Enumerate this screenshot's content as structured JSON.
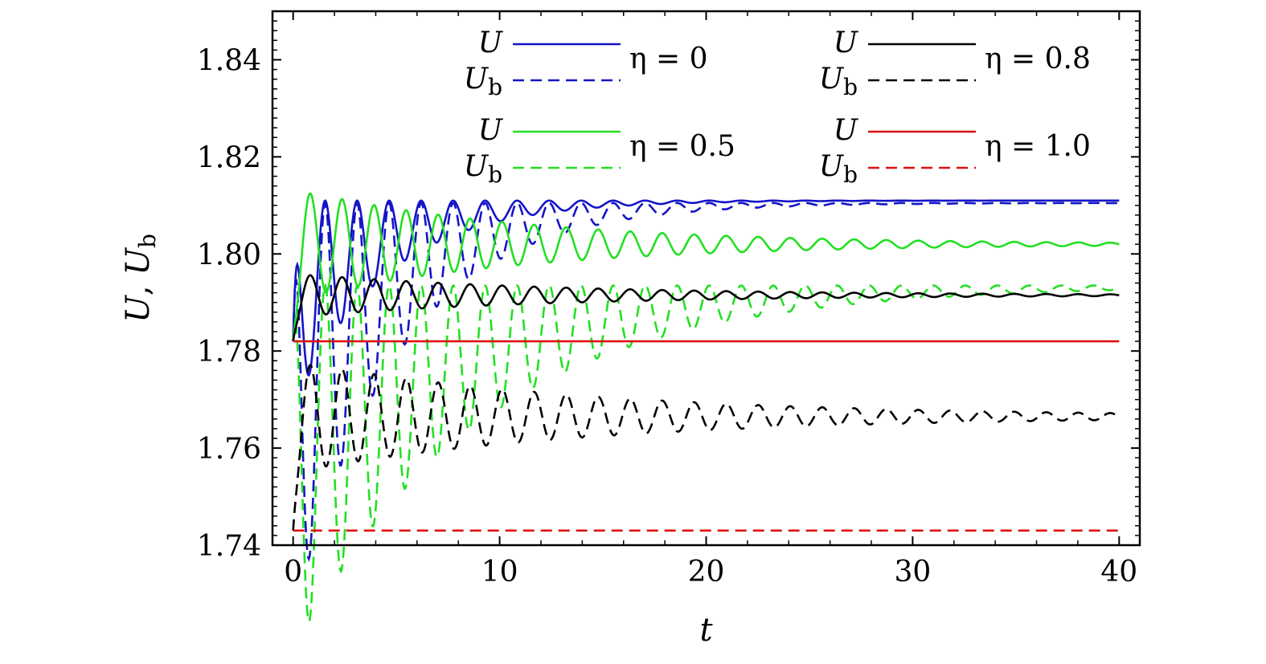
{
  "chart_data": {
    "type": "line",
    "title": "",
    "xlabel": "t",
    "ylabel_main": "U",
    "ylabel_sep": ", ",
    "ylabel_sub_main": "U",
    "ylabel_sub": "b",
    "xlim": [
      -1,
      41
    ],
    "ylim": [
      1.74,
      1.85
    ],
    "xticks": [
      0,
      10,
      20,
      30,
      40
    ],
    "xtick_labels": [
      "0",
      "10",
      "20",
      "30",
      "40"
    ],
    "yticks": [
      1.74,
      1.76,
      1.78,
      1.8,
      1.82,
      1.84
    ],
    "ytick_labels": [
      "1.74",
      "1.76",
      "1.78",
      "1.80",
      "1.82",
      "1.84"
    ],
    "grid": false,
    "legend_position": "top",
    "series": [
      {
        "name": "U, η = 0",
        "color": "#1414c8",
        "dash": "solid",
        "start": 1.782,
        "final": 1.811,
        "ceiling": 1.811,
        "amp0": 0.0215,
        "decay": 0.23,
        "period": 1.55
      },
      {
        "name": "Ub, η = 0",
        "color": "#1414c8",
        "dash": "dashed",
        "start": 1.782,
        "final": 1.8105,
        "ceiling": 1.8105,
        "amp0": 0.043,
        "decay": 0.2,
        "period": 1.55
      },
      {
        "name": "U, η = 0.5",
        "color": "#22e022",
        "dash": "solid",
        "start": 1.782,
        "final": 1.802,
        "ceiling": null,
        "amp0": 0.0115,
        "decay": 0.09,
        "period": 1.55
      },
      {
        "name": "Ub, η = 0.5",
        "color": "#22e022",
        "dash": "dashed",
        "start": 1.782,
        "final": 1.7935,
        "ceiling": 1.7935,
        "amp0": 0.038,
        "decay": 0.11,
        "period": 1.55
      },
      {
        "name": "U, η = 0.8",
        "color": "#000000",
        "dash": "solid",
        "start": 1.782,
        "final": 1.7915,
        "ceiling": null,
        "amp0": 0.0045,
        "decay": 0.08,
        "period": 1.55
      },
      {
        "name": "Ub, η = 0.8",
        "color": "#000000",
        "dash": "dashed",
        "start": 1.743,
        "final": 1.7665,
        "ceiling": null,
        "amp0": 0.0115,
        "decay": 0.07,
        "period": 1.55
      },
      {
        "name": "U, η = 1.0",
        "color": "#dd1111",
        "dash": "solid",
        "start": 1.782,
        "final": 1.782,
        "ceiling": null,
        "amp0": 0,
        "decay": 0,
        "period": 1.55
      },
      {
        "name": "Ub, η = 1.0",
        "color": "#dd1111",
        "dash": "dashed",
        "start": 1.743,
        "final": 1.743,
        "ceiling": null,
        "amp0": 0,
        "decay": 0,
        "period": 1.55
      }
    ],
    "legend": [
      {
        "color": "#1414c8",
        "symbol_main": "U",
        "symbol_sub_main": "U",
        "symbol_sub": "b",
        "eta_text": "η = 0"
      },
      {
        "color": "#000000",
        "symbol_main": "U",
        "symbol_sub_main": "U",
        "symbol_sub": "b",
        "eta_text": "η = 0.8"
      },
      {
        "color": "#22e022",
        "symbol_main": "U",
        "symbol_sub_main": "U",
        "symbol_sub": "b",
        "eta_text": "η = 0.5"
      },
      {
        "color": "#dd1111",
        "symbol_main": "U",
        "symbol_sub_main": "U",
        "symbol_sub": "b",
        "eta_text": "η = 1.0"
      }
    ]
  }
}
